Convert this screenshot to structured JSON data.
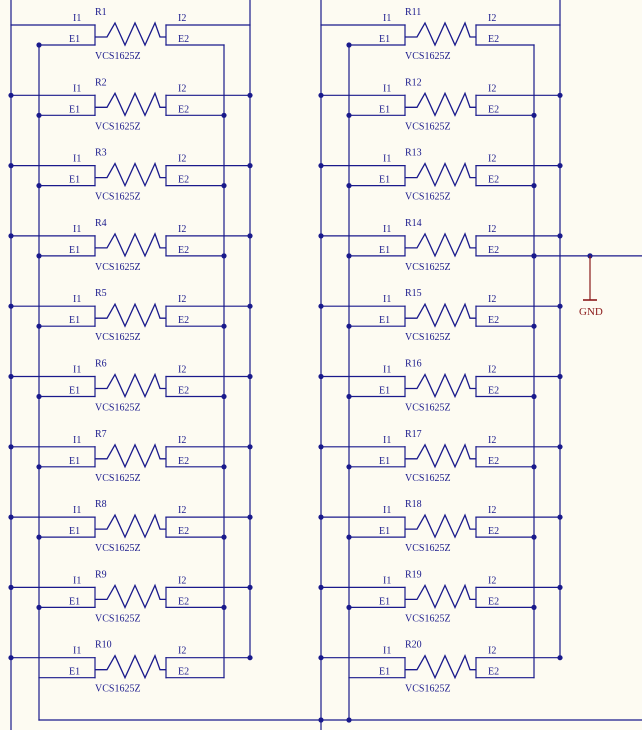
{
  "colors": {
    "background": "#fdfbf2",
    "wire": "#1a1a8c",
    "label": "#1a1a8c",
    "gnd": "#8b1a1a"
  },
  "pin_labels": {
    "i1": "I1",
    "i2": "I2",
    "e1": "E1",
    "e2": "E2"
  },
  "columns": [
    {
      "resistors": [
        {
          "designator": "R1",
          "value": "VCS1625Z"
        },
        {
          "designator": "R2",
          "value": "VCS1625Z"
        },
        {
          "designator": "R3",
          "value": "VCS1625Z"
        },
        {
          "designator": "R4",
          "value": "VCS1625Z"
        },
        {
          "designator": "R5",
          "value": "VCS1625Z"
        },
        {
          "designator": "R6",
          "value": "VCS1625Z"
        },
        {
          "designator": "R7",
          "value": "VCS1625Z"
        },
        {
          "designator": "R8",
          "value": "VCS1625Z"
        },
        {
          "designator": "R9",
          "value": "VCS1625Z"
        },
        {
          "designator": "R10",
          "value": "VCS1625Z"
        }
      ]
    },
    {
      "resistors": [
        {
          "designator": "R11",
          "value": "VCS1625Z"
        },
        {
          "designator": "R12",
          "value": "VCS1625Z"
        },
        {
          "designator": "R13",
          "value": "VCS1625Z"
        },
        {
          "designator": "R14",
          "value": "VCS1625Z"
        },
        {
          "designator": "R15",
          "value": "VCS1625Z"
        },
        {
          "designator": "R16",
          "value": "VCS1625Z"
        },
        {
          "designator": "R17",
          "value": "VCS1625Z"
        },
        {
          "designator": "R18",
          "value": "VCS1625Z"
        },
        {
          "designator": "R19",
          "value": "VCS1625Z"
        },
        {
          "designator": "R20",
          "value": "VCS1625Z"
        }
      ]
    }
  ],
  "gnd_label": "GND"
}
